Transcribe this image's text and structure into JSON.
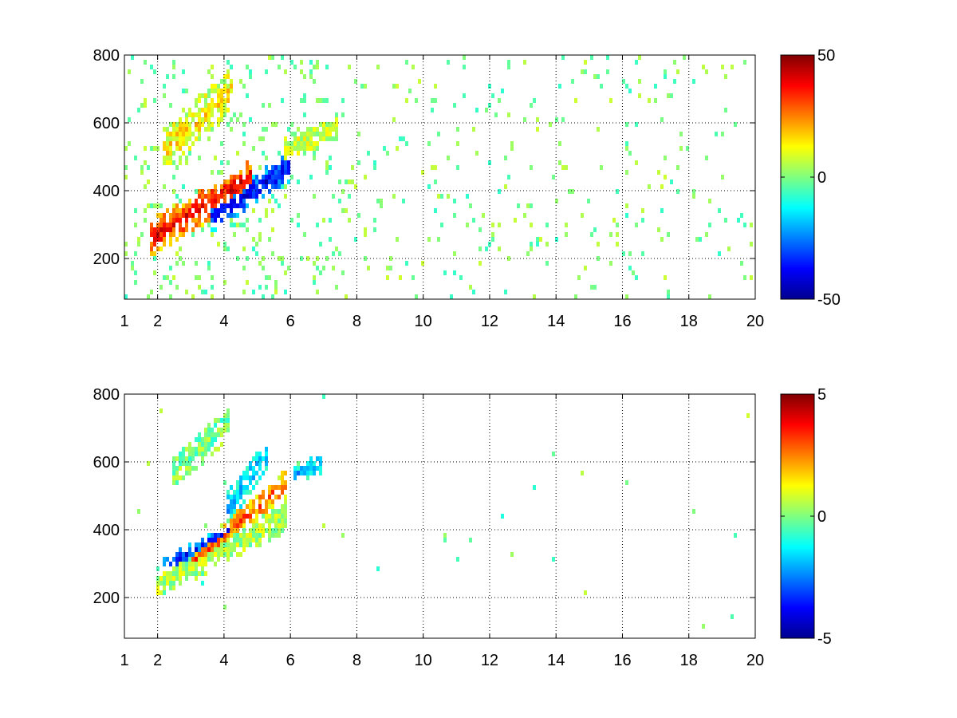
{
  "chart_data": [
    {
      "type": "heatmap",
      "title": "",
      "xlabel": "",
      "ylabel": "",
      "xlim": [
        1,
        20
      ],
      "ylim": [
        80,
        800
      ],
      "x_scale": "linear",
      "grid": true,
      "grid_style": "dotted",
      "xticks": [
        1,
        2,
        4,
        6,
        8,
        10,
        12,
        14,
        16,
        18,
        20
      ],
      "xtick_labels": [
        "1",
        "2",
        "4",
        "6",
        "8",
        "10",
        "12",
        "14",
        "16",
        "18",
        "20"
      ],
      "yticks": [
        200,
        400,
        600,
        800
      ],
      "ytick_labels": [
        "200",
        "400",
        "600",
        "800"
      ],
      "colormap": "jet",
      "colorbar": {
        "range": [
          -50,
          50
        ],
        "ticks": [
          -50,
          0,
          50
        ],
        "tick_labels": [
          "-50",
          "0",
          "50"
        ],
        "placement": "right"
      },
      "features": [
        {
          "x_range": [
            1.8,
            4.8
          ],
          "y_center_start": 260,
          "y_center_end": 440,
          "width": 110,
          "value": 40
        },
        {
          "x_range": [
            3.6,
            6.0
          ],
          "y_center_start": 320,
          "y_center_end": 470,
          "width": 90,
          "value": -40
        },
        {
          "x_range": [
            2.2,
            4.3
          ],
          "y_center_start": 520,
          "y_center_end": 700,
          "width": 130,
          "value": 15
        },
        {
          "x_range": [
            5.8,
            7.4
          ],
          "y_center_start": 520,
          "y_center_end": 590,
          "width": 80,
          "value": 8
        }
      ],
      "noise_value_range": [
        -8,
        8
      ]
    },
    {
      "type": "heatmap",
      "title": "",
      "xlabel": "",
      "ylabel": "",
      "xlim": [
        1,
        20
      ],
      "ylim": [
        80,
        800
      ],
      "x_scale": "linear",
      "grid": true,
      "grid_style": "dotted",
      "xticks": [
        1,
        2,
        4,
        6,
        8,
        10,
        12,
        14,
        16,
        18,
        20
      ],
      "xtick_labels": [
        "1",
        "2",
        "4",
        "6",
        "8",
        "10",
        "12",
        "14",
        "16",
        "18",
        "20"
      ],
      "yticks": [
        200,
        400,
        600,
        800
      ],
      "ytick_labels": [
        "200",
        "400",
        "600",
        "800"
      ],
      "colormap": "jet",
      "colorbar": {
        "range": [
          -5,
          5
        ],
        "ticks": [
          -5,
          0,
          5
        ],
        "tick_labels": [
          "-5",
          "0",
          "5"
        ],
        "placement": "right"
      },
      "features": [
        {
          "x_range": [
            2.0,
            5.9
          ],
          "y_center_start": 240,
          "y_center_end": 440,
          "width": 90,
          "value": 0.5
        },
        {
          "x_range": [
            2.2,
            4.2
          ],
          "y_center_start": 290,
          "y_center_end": 400,
          "width": 60,
          "value": -3.5
        },
        {
          "x_range": [
            3.0,
            5.9
          ],
          "y_center_start": 300,
          "y_center_end": 540,
          "width": 80,
          "value": 3
        },
        {
          "x_range": [
            4.1,
            5.3
          ],
          "y_center_start": 460,
          "y_center_end": 620,
          "width": 100,
          "value": -2
        },
        {
          "x_range": [
            2.4,
            4.2
          ],
          "y_center_start": 560,
          "y_center_end": 720,
          "width": 100,
          "value": 0
        },
        {
          "x_range": [
            6.1,
            7.0
          ],
          "y_center_start": 560,
          "y_center_end": 600,
          "width": 60,
          "value": -2
        }
      ],
      "noise_value_range": [
        -1,
        1
      ]
    }
  ]
}
